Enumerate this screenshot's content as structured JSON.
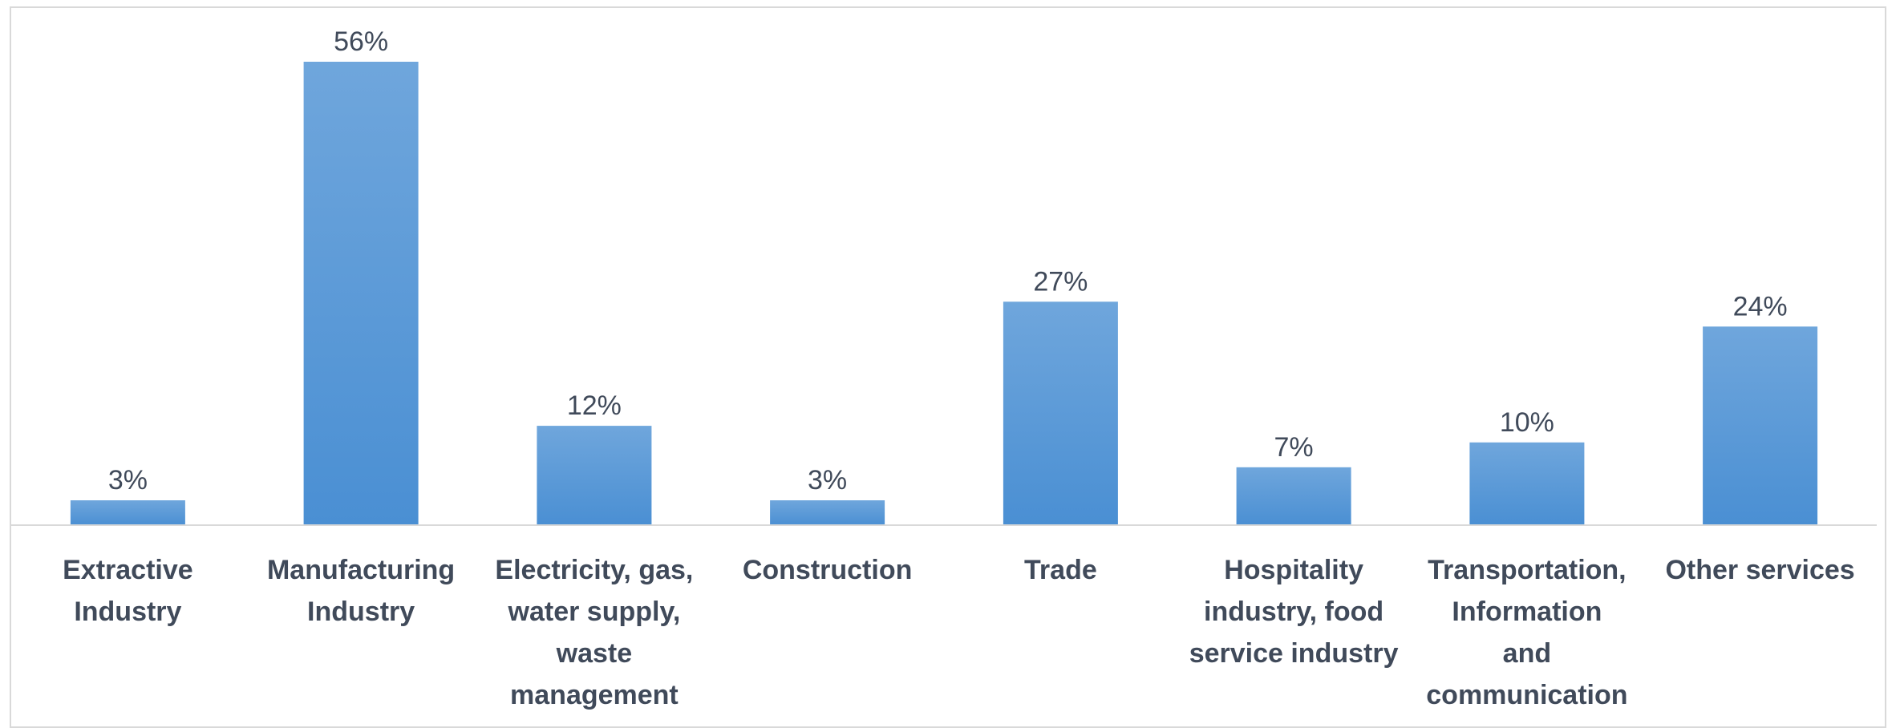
{
  "chart_data": {
    "type": "bar",
    "categories": [
      "Extractive Industry",
      "Manufacturing Industry",
      "Electricity, gas, water supply, waste management",
      "Construction",
      "Trade",
      "Hospitality industry, food service industry",
      "Transportation, Information and communication",
      "Other services"
    ],
    "category_label_lines": [
      [
        "Extractive",
        "Industry"
      ],
      [
        "Manufacturing",
        "Industry"
      ],
      [
        "Electricity, gas,",
        "water supply,",
        "waste",
        "management"
      ],
      [
        "Construction"
      ],
      [
        "Trade"
      ],
      [
        "Hospitality",
        "industry, food",
        "service industry"
      ],
      [
        "Transportation,",
        "Information",
        "and",
        "communication"
      ],
      [
        "Other services"
      ]
    ],
    "values": [
      3,
      56,
      12,
      3,
      27,
      7,
      10,
      24
    ],
    "value_labels": [
      "3%",
      "56%",
      "12%",
      "3%",
      "27%",
      "7%",
      "10%",
      "24%"
    ],
    "unit": "%",
    "title": "",
    "xlabel": "",
    "ylabel": "",
    "ylim": [
      0,
      56
    ],
    "grid": false,
    "legend": "none",
    "colors": {
      "bar_top": "#6fa6dc",
      "bar_bottom": "#4a8fd3",
      "axis": "#d9d9d9",
      "text": "#404a5a"
    }
  }
}
